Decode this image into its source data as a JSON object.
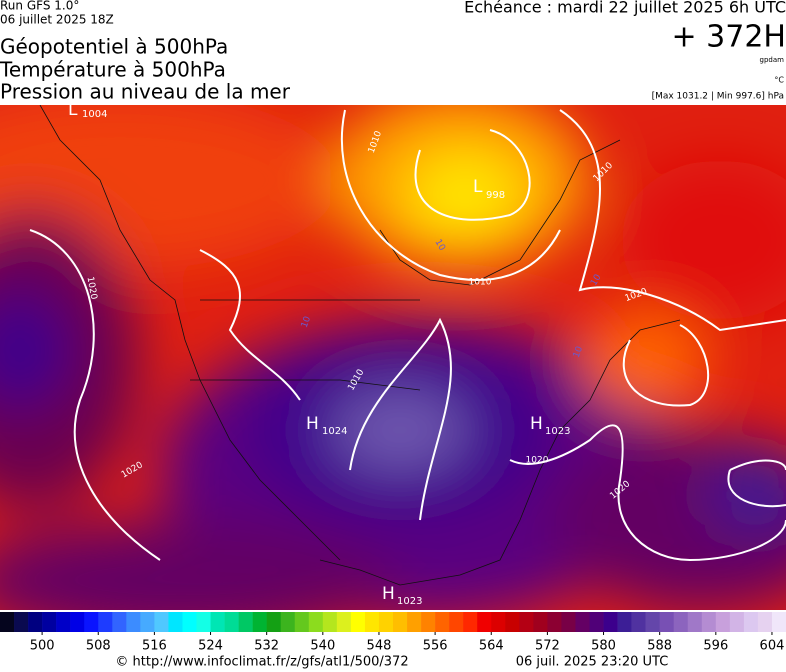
{
  "header": {
    "run": "Run GFS 1.0°",
    "run_date": "06 juillet 2025 18Z",
    "titles": [
      "Géopotentiel à 500hPa",
      "Température à 500hPa",
      "Pression au niveau de la mer"
    ],
    "echeance": "Echéance : mardi 22 juillet 2025 6h UTC",
    "lead": "+ 372H",
    "unit_geo": "gpdam",
    "unit_temp": "°C",
    "pressure_range": "[Max 1031.2 | Min 997.6] hPa"
  },
  "map": {
    "pressure_centers": [
      {
        "letter": "L",
        "value": "1004"
      },
      {
        "letter": "L",
        "value": "998"
      },
      {
        "letter": "H",
        "value": "1024"
      },
      {
        "letter": "H",
        "value": "1023"
      },
      {
        "letter": "H",
        "value": "1023"
      }
    ],
    "isobar_labels": [
      "1010",
      "1020",
      "1010",
      "1010",
      "1020",
      "1020",
      "1020",
      "1020",
      "1010"
    ],
    "isotherm_labels": [
      "10",
      "10",
      "10",
      "10"
    ]
  },
  "colorbar": {
    "lim": [
      494,
      606
    ],
    "ticks": [
      500,
      508,
      516,
      524,
      532,
      540,
      548,
      556,
      564,
      572,
      580,
      588,
      596,
      604
    ],
    "colors": [
      "#05051e",
      "#0a0a50",
      "#000080",
      "#0000a0",
      "#0000c8",
      "#0000e6",
      "#0a14ff",
      "#1e3cff",
      "#3264ff",
      "#3c8cff",
      "#46aaff",
      "#50c8ff",
      "#00e6ff",
      "#00ffff",
      "#14ffe6",
      "#00e6b4",
      "#00dc96",
      "#00c864",
      "#00b432",
      "#14a014",
      "#3cb41e",
      "#64c81e",
      "#8cdc1e",
      "#b4e61e",
      "#dcf01e",
      "#ffff00",
      "#ffe600",
      "#ffd200",
      "#ffbe00",
      "#ffa000",
      "#ff8200",
      "#ff6400",
      "#ff4600",
      "#ff2800",
      "#f00000",
      "#dc0000",
      "#c80000",
      "#b40014",
      "#a0001e",
      "#8c0032",
      "#780046",
      "#640064",
      "#500078",
      "#3c008c",
      "#3c1e96",
      "#5032a0",
      "#6446aa",
      "#7850b4",
      "#8c64be",
      "#a078c8",
      "#b48cd2",
      "#c8a0dc",
      "#d2b4e6",
      "#dcc8f0",
      "#e6d2f0",
      "#f0e6fa"
    ]
  },
  "footer": {
    "url": "© http://www.infoclimat.fr/z/gfs/atl1/500/372",
    "generated": "06 juil. 2025 23:20 UTC"
  }
}
